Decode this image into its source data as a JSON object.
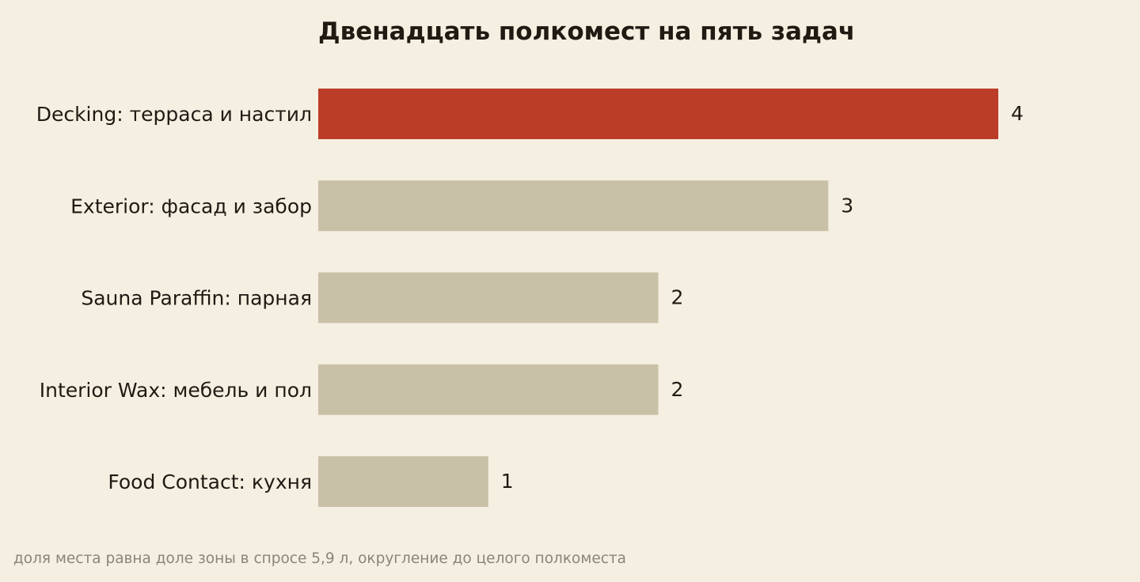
{
  "colors": {
    "background": "#f5efe2",
    "highlight": "#bb3d28",
    "default_bar": "#c9c0a8",
    "text": "#1f1a12",
    "footnote": "#8a8479"
  },
  "chart_data": {
    "type": "bar",
    "orientation": "horizontal",
    "title": "Двенадцать полкомест на пять задач",
    "categories": [
      "Decking: терраса и настил",
      "Exterior: фасад и забор",
      "Sauna Paraffin: парная",
      "Interior Wax: мебель и пол",
      "Food Contact: кухня"
    ],
    "values": [
      4,
      3,
      2,
      2,
      1
    ],
    "value_labels": [
      "4",
      "3",
      "2",
      "2",
      "1"
    ],
    "highlight_index": 0,
    "xlim": [
      0,
      4
    ],
    "grid": false,
    "legend": "none",
    "xlabel": "",
    "ylabel": ""
  },
  "footnote": "доля места равна доле зоны в спросе 5,9 л, округление до целого полкоместа"
}
